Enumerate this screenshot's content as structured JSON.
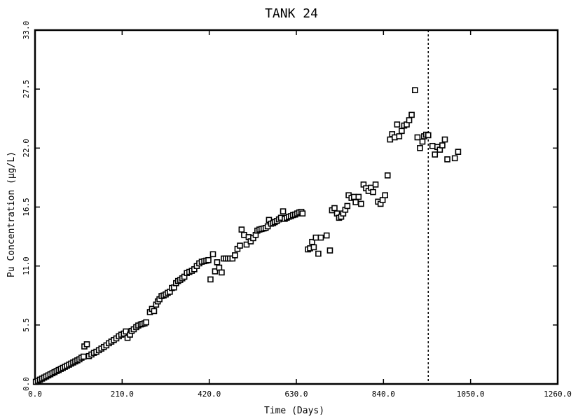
{
  "chart_data": {
    "type": "scatter",
    "title": "TANK 24",
    "xlabel": "Time (Days)",
    "ylabel": "Pu Concentration (µg/L)",
    "xlim": [
      0,
      1260
    ],
    "ylim": [
      0,
      33
    ],
    "xticks": [
      0,
      210,
      420,
      630,
      840,
      1050,
      1260
    ],
    "yticks": [
      0,
      5.5,
      11,
      16.5,
      22,
      27.5,
      33
    ],
    "xtick_labels": [
      "0.0",
      "210.0",
      "420.0",
      "630.0",
      "840.0",
      "1050.0",
      "1260.0"
    ],
    "ytick_labels": [
      "0.0",
      "5.5",
      "11.0",
      "16.5",
      "22.0",
      "27.5",
      "33.0"
    ],
    "grid": false,
    "marker": "hollow-square",
    "reference_line": {
      "x": 948,
      "style": "dotted"
    },
    "points": [
      [
        2,
        0.2
      ],
      [
        7,
        0.3
      ],
      [
        12,
        0.4
      ],
      [
        17,
        0.5
      ],
      [
        22,
        0.6
      ],
      [
        27,
        0.7
      ],
      [
        32,
        0.8
      ],
      [
        37,
        0.9
      ],
      [
        42,
        1.0
      ],
      [
        47,
        1.1
      ],
      [
        52,
        1.2
      ],
      [
        57,
        1.3
      ],
      [
        62,
        1.4
      ],
      [
        67,
        1.5
      ],
      [
        72,
        1.6
      ],
      [
        77,
        1.7
      ],
      [
        82,
        1.8
      ],
      [
        87,
        1.9
      ],
      [
        92,
        2.0
      ],
      [
        97,
        2.1
      ],
      [
        102,
        2.2
      ],
      [
        107,
        2.3
      ],
      [
        112,
        2.45
      ],
      [
        117,
        2.55
      ],
      [
        119,
        3.5
      ],
      [
        125,
        3.7
      ],
      [
        130,
        2.6
      ],
      [
        136,
        2.75
      ],
      [
        142,
        2.9
      ],
      [
        148,
        3.0
      ],
      [
        154,
        3.15
      ],
      [
        160,
        3.3
      ],
      [
        166,
        3.45
      ],
      [
        172,
        3.6
      ],
      [
        178,
        3.8
      ],
      [
        184,
        3.95
      ],
      [
        190,
        4.1
      ],
      [
        196,
        4.25
      ],
      [
        202,
        4.45
      ],
      [
        208,
        4.6
      ],
      [
        214,
        4.7
      ],
      [
        219,
        4.9
      ],
      [
        223,
        4.3
      ],
      [
        229,
        4.6
      ],
      [
        233,
        4.95
      ],
      [
        238,
        5.1
      ],
      [
        244,
        5.3
      ],
      [
        249,
        5.45
      ],
      [
        255,
        5.55
      ],
      [
        259,
        5.6
      ],
      [
        264,
        5.65
      ],
      [
        268,
        5.75
      ],
      [
        277,
        6.7
      ],
      [
        282,
        7.0
      ],
      [
        287,
        6.8
      ],
      [
        292,
        7.4
      ],
      [
        296,
        7.7
      ],
      [
        300,
        7.9
      ],
      [
        305,
        8.2
      ],
      [
        310,
        8.25
      ],
      [
        315,
        8.35
      ],
      [
        320,
        8.5
      ],
      [
        325,
        8.6
      ],
      [
        330,
        8.95
      ],
      [
        335,
        9.0
      ],
      [
        340,
        9.4
      ],
      [
        345,
        9.6
      ],
      [
        350,
        9.7
      ],
      [
        355,
        9.85
      ],
      [
        360,
        10.0
      ],
      [
        366,
        10.35
      ],
      [
        372,
        10.45
      ],
      [
        378,
        10.55
      ],
      [
        384,
        10.7
      ],
      [
        390,
        11.0
      ],
      [
        396,
        11.25
      ],
      [
        402,
        11.4
      ],
      [
        408,
        11.45
      ],
      [
        413,
        11.5
      ],
      [
        418,
        11.55
      ],
      [
        423,
        9.75
      ],
      [
        429,
        12.1
      ],
      [
        434,
        10.5
      ],
      [
        439,
        11.35
      ],
      [
        444,
        10.85
      ],
      [
        450,
        10.4
      ],
      [
        455,
        11.7
      ],
      [
        460,
        11.7
      ],
      [
        465,
        11.7
      ],
      [
        470,
        11.7
      ],
      [
        476,
        11.7
      ],
      [
        482,
        12.0
      ],
      [
        488,
        12.6
      ],
      [
        494,
        12.9
      ],
      [
        498,
        14.4
      ],
      [
        504,
        13.9
      ],
      [
        510,
        13.0
      ],
      [
        515,
        13.7
      ],
      [
        520,
        13.3
      ],
      [
        526,
        13.6
      ],
      [
        532,
        13.9
      ],
      [
        536,
        14.3
      ],
      [
        541,
        14.4
      ],
      [
        546,
        14.45
      ],
      [
        551,
        14.5
      ],
      [
        556,
        14.55
      ],
      [
        561,
        14.7
      ],
      [
        564,
        15.3
      ],
      [
        569,
        14.95
      ],
      [
        574,
        15.0
      ],
      [
        578,
        15.1
      ],
      [
        583,
        15.2
      ],
      [
        588,
        15.35
      ],
      [
        593,
        15.5
      ],
      [
        598,
        16.1
      ],
      [
        602,
        15.4
      ],
      [
        607,
        15.5
      ],
      [
        612,
        15.6
      ],
      [
        617,
        15.65
      ],
      [
        622,
        15.75
      ],
      [
        627,
        15.8
      ],
      [
        632,
        15.9
      ],
      [
        637,
        16.0
      ],
      [
        642,
        16.05
      ],
      [
        645,
        15.9
      ],
      [
        658,
        12.55
      ],
      [
        663,
        12.65
      ],
      [
        668,
        13.25
      ],
      [
        672,
        12.75
      ],
      [
        677,
        13.65
      ],
      [
        683,
        12.15
      ],
      [
        689,
        13.65
      ],
      [
        703,
        13.85
      ],
      [
        711,
        12.45
      ],
      [
        716,
        16.2
      ],
      [
        722,
        16.4
      ],
      [
        728,
        15.9
      ],
      [
        733,
        15.5
      ],
      [
        738,
        15.6
      ],
      [
        743,
        15.9
      ],
      [
        748,
        16.25
      ],
      [
        753,
        16.6
      ],
      [
        756,
        17.6
      ],
      [
        763,
        17.35
      ],
      [
        769,
        17.45
      ],
      [
        773,
        16.95
      ],
      [
        780,
        17.45
      ],
      [
        786,
        16.8
      ],
      [
        792,
        18.6
      ],
      [
        798,
        18.25
      ],
      [
        804,
        18.0
      ],
      [
        810,
        18.3
      ],
      [
        815,
        17.9
      ],
      [
        821,
        18.6
      ],
      [
        827,
        17.0
      ],
      [
        833,
        16.8
      ],
      [
        838,
        17.15
      ],
      [
        844,
        17.6
      ],
      [
        850,
        19.45
      ],
      [
        856,
        22.8
      ],
      [
        861,
        23.3
      ],
      [
        867,
        23.0
      ],
      [
        873,
        24.2
      ],
      [
        878,
        23.1
      ],
      [
        884,
        23.6
      ],
      [
        890,
        24.1
      ],
      [
        896,
        24.2
      ],
      [
        902,
        24.6
      ],
      [
        908,
        25.1
      ],
      [
        916,
        27.4
      ],
      [
        922,
        23.0
      ],
      [
        928,
        22.0
      ],
      [
        934,
        22.6
      ],
      [
        938,
        23.1
      ],
      [
        943,
        23.25
      ],
      [
        948,
        23.2
      ],
      [
        958,
        22.2
      ],
      [
        964,
        21.4
      ],
      [
        970,
        22.1
      ],
      [
        976,
        21.85
      ],
      [
        982,
        22.25
      ],
      [
        988,
        22.8
      ],
      [
        994,
        20.95
      ],
      [
        1012,
        21.05
      ],
      [
        1020,
        21.65
      ]
    ]
  }
}
